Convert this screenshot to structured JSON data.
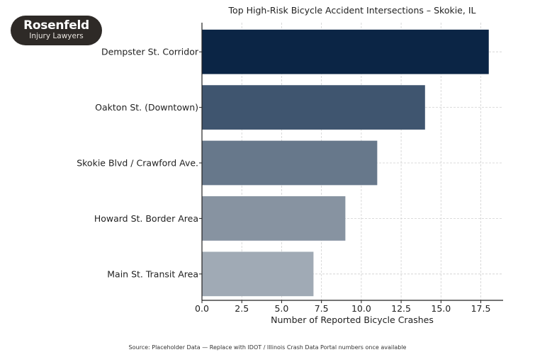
{
  "logo": {
    "line1": "Rosenfeld",
    "line2": "Injury Lawyers"
  },
  "chart_data": {
    "type": "bar",
    "orientation": "horizontal",
    "title": "Top High-Risk Bicycle Accident Intersections – Skokie, IL",
    "xlabel": "Number of Reported Bicycle Crashes",
    "ylabel": "",
    "categories": [
      "Dempster St. Corridor",
      "Oakton St. (Downtown)",
      "Skokie Blvd / Crawford Ave.",
      "Howard St. Border Area",
      "Main St. Transit Area"
    ],
    "values": [
      18,
      14,
      11,
      9,
      7
    ],
    "colors": [
      "#0b2545",
      "#3f556f",
      "#67788b",
      "#8793a1",
      "#a0aab5"
    ],
    "xlim": [
      0,
      18.9
    ],
    "xticks": [
      "0.0",
      "2.5",
      "5.0",
      "7.5",
      "10.0",
      "12.5",
      "15.0",
      "17.5"
    ],
    "grid": true
  },
  "source": "Source: Placeholder Data — Replace with IDOT / Illinois Crash Data Portal numbers once available"
}
